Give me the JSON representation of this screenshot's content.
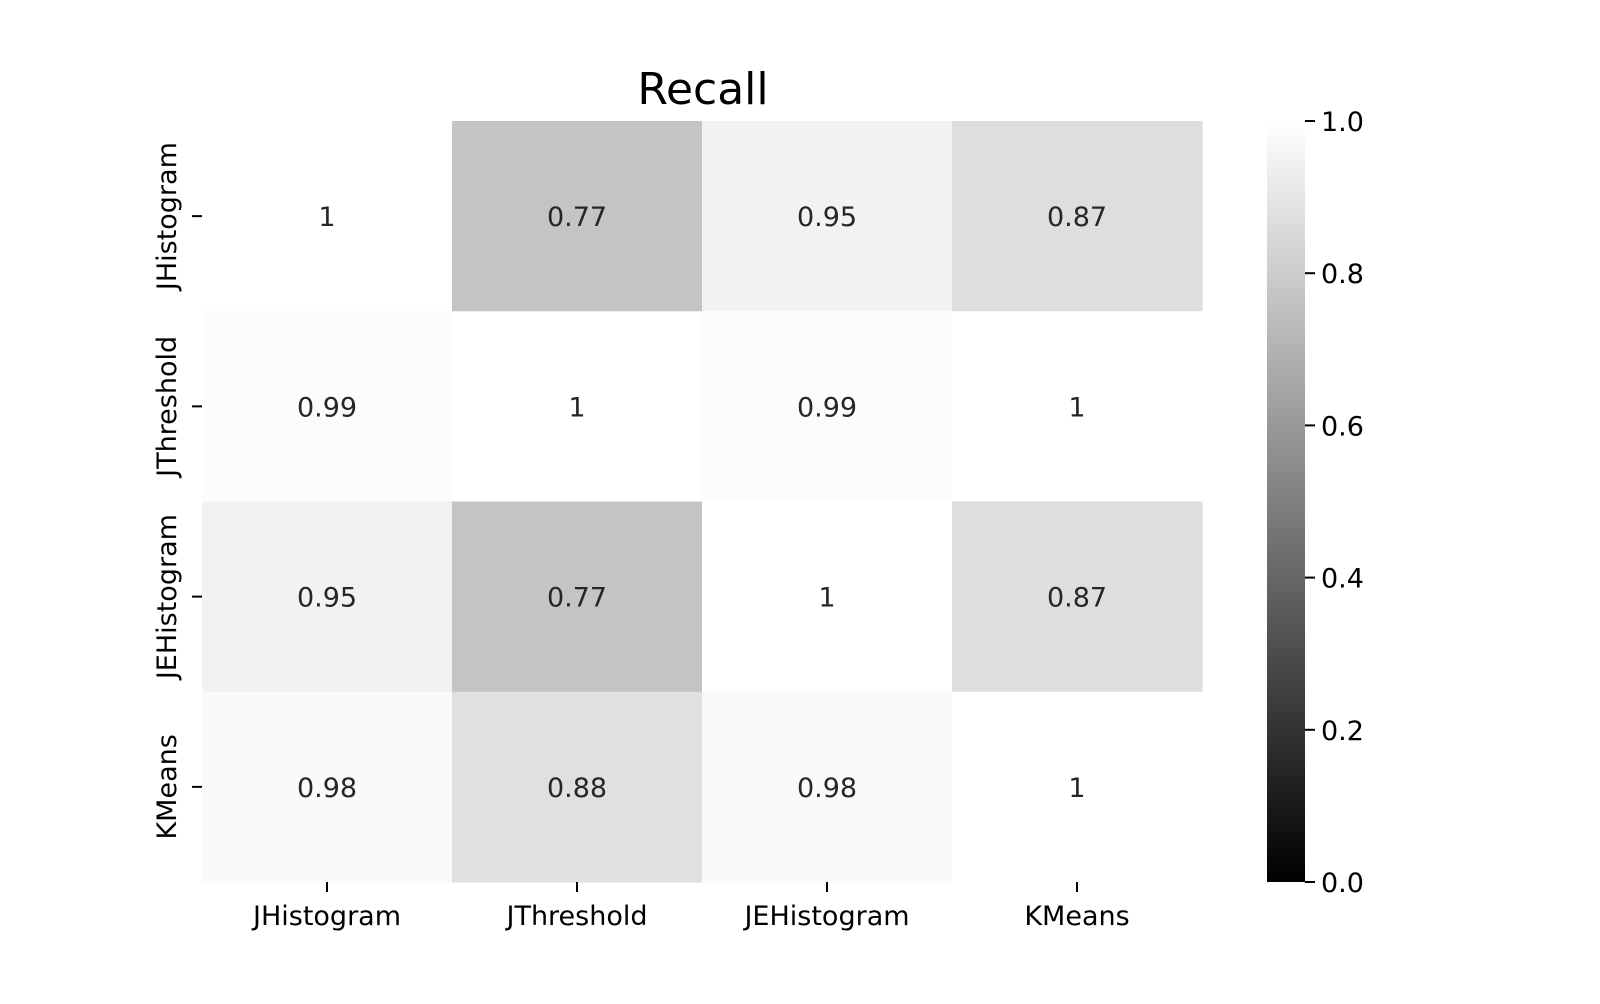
{
  "chart_data": {
    "type": "heatmap",
    "title": "Recall",
    "xlabel": "",
    "ylabel": "",
    "x_categories": [
      "JHistogram",
      "JThreshold",
      "JEHistogram",
      "KMeans"
    ],
    "y_categories": [
      "JHistogram",
      "JThreshold",
      "JEHistogram",
      "KMeans"
    ],
    "values": [
      [
        1.0,
        0.77,
        0.95,
        0.87
      ],
      [
        0.99,
        1.0,
        0.99,
        1.0
      ],
      [
        0.95,
        0.77,
        1.0,
        0.87
      ],
      [
        0.98,
        0.88,
        0.98,
        1.0
      ]
    ],
    "value_labels": [
      [
        "1",
        "0.77",
        "0.95",
        "0.87"
      ],
      [
        "0.99",
        "1",
        "0.99",
        "1"
      ],
      [
        "0.95",
        "0.77",
        "1",
        "0.87"
      ],
      [
        "0.98",
        "0.88",
        "0.98",
        "1"
      ]
    ],
    "colorbar": {
      "range": [
        0.0,
        1.0
      ],
      "ticks": [
        0.0,
        0.2,
        0.4,
        0.6,
        0.8,
        1.0
      ],
      "tick_labels": [
        "0.0",
        "0.2",
        "0.4",
        "0.6",
        "0.8",
        "1.0"
      ],
      "colormap": "grayscale",
      "low_color": "#000000",
      "high_color": "#ffffff"
    },
    "grid": false,
    "legend": "colorbar-right"
  }
}
